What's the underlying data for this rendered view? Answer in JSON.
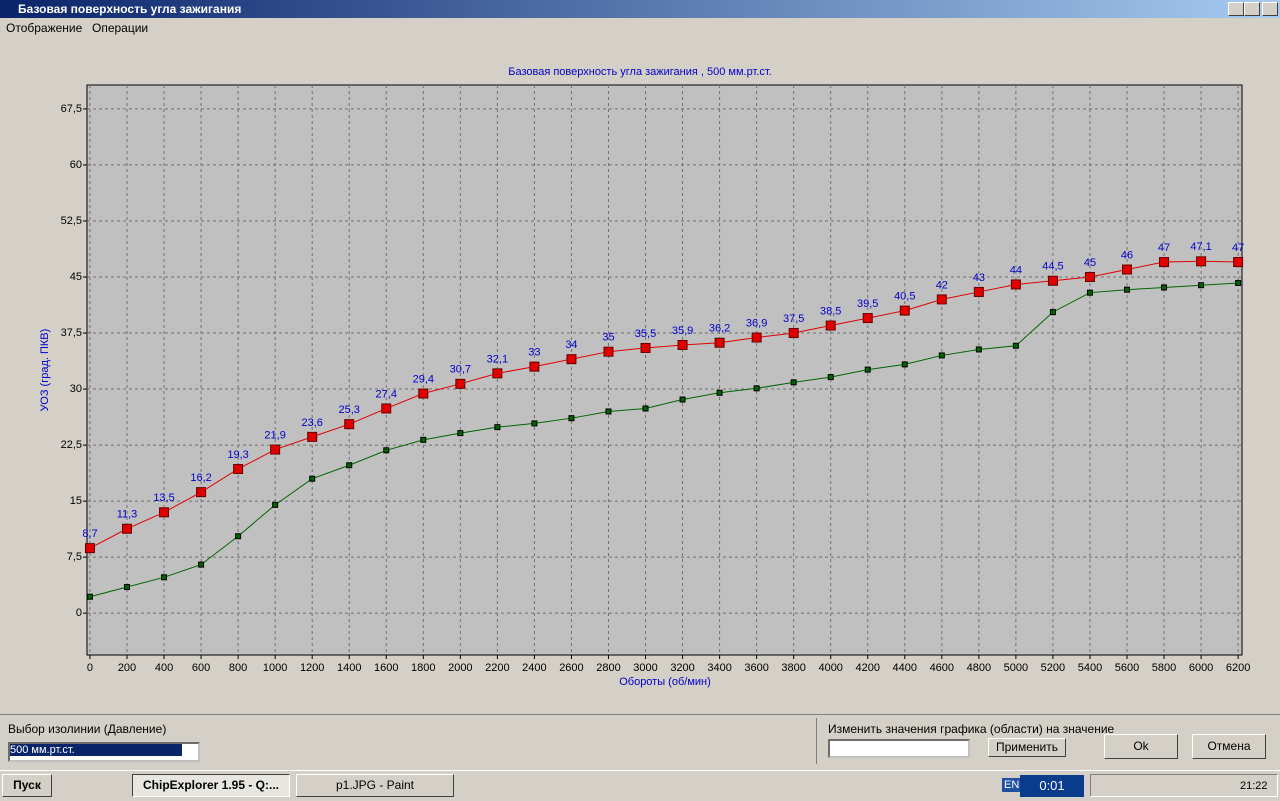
{
  "window": {
    "title": "Базовая поверхность угла зажигания"
  },
  "menu": [
    "Отображение",
    "Операции"
  ],
  "chart_data": {
    "type": "line",
    "title": "Базовая поверхность угла зажигания , 500 мм.рт.ст.",
    "x_label": "Обороты (об/мин)",
    "y_label": "УОЗ (град. ПКВ)",
    "x": [
      0,
      200,
      400,
      600,
      800,
      1000,
      1200,
      1400,
      1600,
      1800,
      2000,
      2200,
      2400,
      2600,
      2800,
      3000,
      3200,
      3400,
      3600,
      3800,
      4000,
      4200,
      4400,
      4600,
      4800,
      5000,
      5200,
      5400,
      5600,
      5800,
      6000,
      6200
    ],
    "xlim": [
      -16,
      6221
    ],
    "xticks": [
      0,
      200,
      400,
      600,
      800,
      1000,
      1200,
      1400,
      1600,
      1800,
      2000,
      2200,
      2400,
      2600,
      2800,
      3000,
      3200,
      3400,
      3600,
      3800,
      4000,
      4200,
      4400,
      4600,
      4800,
      5000,
      5200,
      5400,
      5600,
      5800,
      6000,
      6200
    ],
    "ylim": [
      -5.6,
      70.7
    ],
    "yticks": [
      0,
      {
        "value": 7.5,
        "label": "7,5"
      },
      15,
      {
        "value": 22.5,
        "label": "22,5"
      },
      30,
      {
        "value": 37.5,
        "label": "37,5"
      },
      45,
      {
        "value": 52.5,
        "label": "52,5"
      },
      60,
      {
        "value": 67.5,
        "label": "67,5"
      }
    ],
    "grid": true,
    "series": [
      {
        "color": "#e00000",
        "values": [
          8.7,
          11.3,
          13.5,
          16.2,
          19.3,
          21.9,
          23.6,
          25.3,
          27.4,
          29.4,
          30.7,
          32.1,
          33,
          34,
          35,
          35.5,
          35.9,
          36.2,
          36.9,
          37.5,
          38.5,
          39.5,
          40.5,
          42,
          43,
          44,
          44.5,
          45,
          46,
          47,
          47.1,
          47
        ],
        "value_labels": [
          "8,7",
          "11,3",
          "13,5",
          "16,2",
          "19,3",
          "21,9",
          "23,6",
          "25,3",
          "27,4",
          "29,4",
          "30,7",
          "32,1",
          "33",
          "34",
          "35",
          "35,5",
          "35,9",
          "36,2",
          "36,9",
          "37,5",
          "38,5",
          "39,5",
          "40,5",
          "42",
          "43",
          "44",
          "44,5",
          "45",
          "46",
          "47",
          "47,1",
          "47"
        ]
      },
      {
        "color": "#006400",
        "values": [
          2.2,
          3.5,
          4.8,
          6.5,
          10.3,
          14.5,
          18,
          19.8,
          21.8,
          23.2,
          24.1,
          24.9,
          25.4,
          26.1,
          27,
          27.4,
          28.6,
          29.5,
          30.1,
          30.9,
          31.6,
          32.6,
          33.3,
          34.5,
          35.3,
          35.8,
          40.3,
          42.9,
          43.3,
          43.6,
          43.9,
          44.2
        ]
      }
    ]
  },
  "controls": {
    "isoline_label": "Выбор изолинии (Давление)",
    "isoline_value": "500 мм.рт.ст.",
    "change_label": "Изменить значения графика (области) на значение",
    "apply": "Применить",
    "ok": "Ok",
    "cancel": "Отмена"
  },
  "taskbar": {
    "start": "Пуск",
    "tasks": [
      "ChipExplorer  1.95 - Q:...",
      "p1.JPG - Paint"
    ],
    "lang": "EN",
    "timer": "0:01",
    "clock": "21:22"
  }
}
